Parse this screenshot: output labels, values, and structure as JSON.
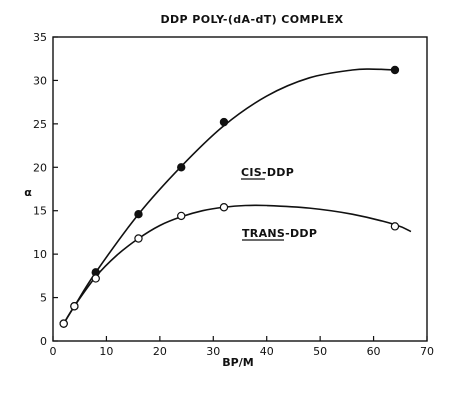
{
  "chart_data": {
    "type": "scatter",
    "title": "DDP POLY-(dA-dT) COMPLEX",
    "xlabel": "BP/M",
    "ylabel": "α",
    "xlim": [
      0,
      70
    ],
    "ylim": [
      0,
      35
    ],
    "xticks": [
      0,
      10,
      20,
      30,
      40,
      50,
      60,
      70
    ],
    "yticks": [
      0,
      5,
      10,
      15,
      20,
      25,
      30,
      35
    ],
    "grid": false,
    "series": [
      {
        "name": "CIS-DDP",
        "marker": "filled-circle",
        "x": [
          2,
          4,
          8,
          16,
          24,
          32,
          64
        ],
        "y": [
          2.0,
          4.0,
          7.9,
          14.6,
          20.0,
          25.2,
          31.2
        ],
        "curve_x": [
          2,
          4,
          8,
          16,
          24,
          32,
          40,
          48,
          56,
          60,
          64
        ],
        "curve_y": [
          2.0,
          4.0,
          7.9,
          14.6,
          20.1,
          24.8,
          28.2,
          30.3,
          31.2,
          31.3,
          31.2
        ]
      },
      {
        "name": "TRANS-DDP",
        "marker": "open-circle",
        "x": [
          2,
          4,
          8,
          16,
          24,
          32,
          64
        ],
        "y": [
          2.0,
          4.0,
          7.2,
          11.8,
          14.4,
          15.4,
          13.2
        ],
        "curve_x": [
          2,
          4,
          8,
          12,
          16,
          20,
          24,
          28,
          32,
          36,
          40,
          48,
          56,
          64,
          67
        ],
        "curve_y": [
          2.0,
          4.0,
          7.4,
          9.9,
          11.8,
          13.3,
          14.3,
          15.0,
          15.4,
          15.6,
          15.6,
          15.3,
          14.6,
          13.4,
          12.6
        ]
      }
    ]
  }
}
